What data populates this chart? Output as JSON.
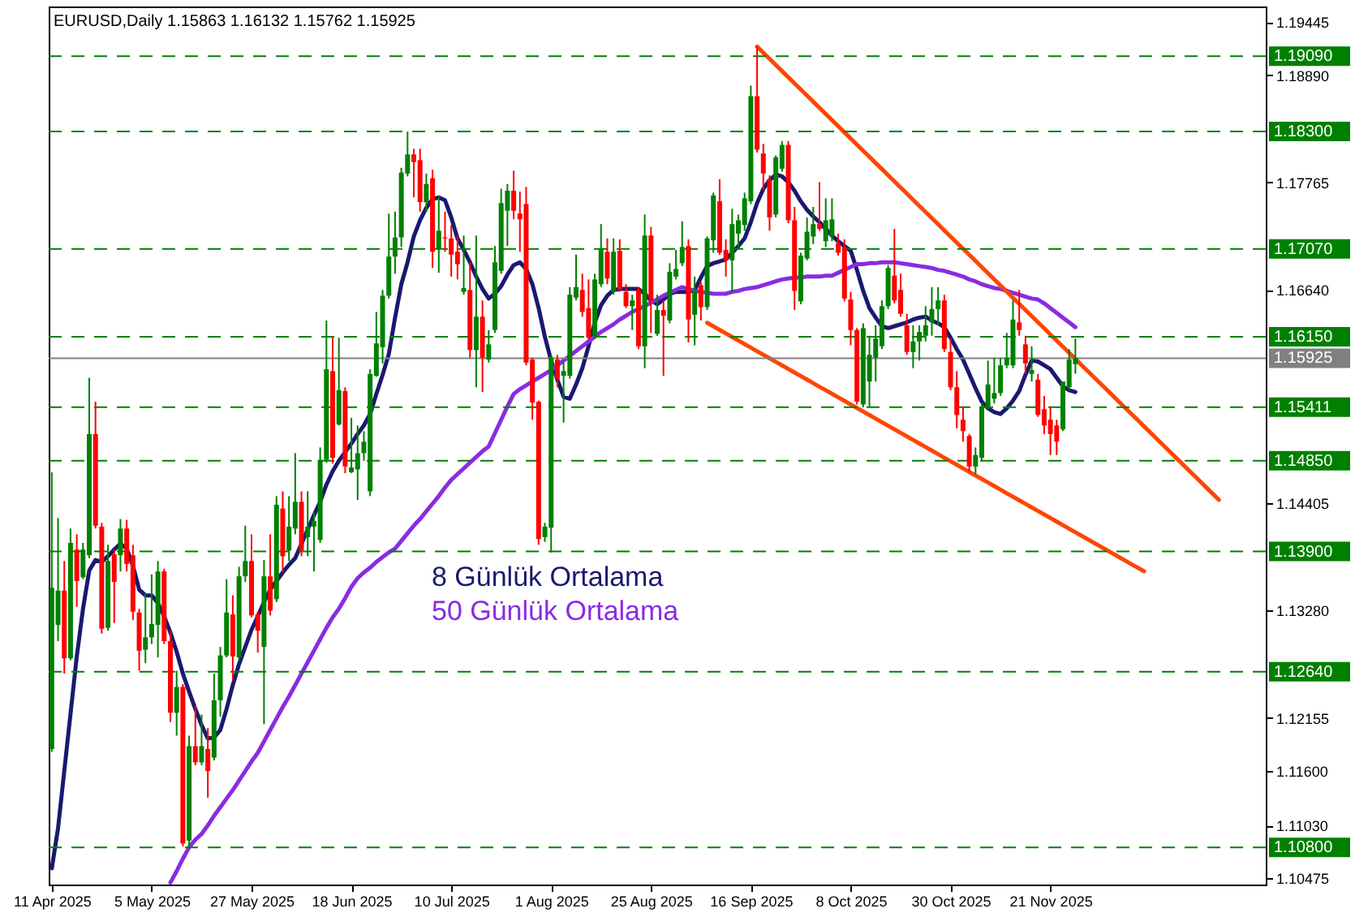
{
  "chart_data": {
    "type": "candlestick",
    "title": "EURUSD,Daily  1.15863 1.16132 1.15762 1.15925",
    "categories": [
      "11 Apr 2025",
      null,
      null,
      null,
      null,
      null,
      null,
      null,
      null,
      null,
      null,
      null,
      null,
      null,
      null,
      null,
      "5 May 2025",
      null,
      null,
      null,
      null,
      null,
      null,
      null,
      null,
      null,
      null,
      null,
      null,
      null,
      null,
      null,
      "27 May 2025",
      null,
      null,
      null,
      null,
      null,
      null,
      null,
      null,
      null,
      null,
      null,
      null,
      null,
      null,
      null,
      "18 Jun 2025",
      null,
      null,
      null,
      null,
      null,
      null,
      null,
      null,
      null,
      null,
      null,
      null,
      null,
      null,
      null,
      "10 Jul 2025",
      null,
      null,
      null,
      null,
      null,
      null,
      null,
      null,
      null,
      null,
      null,
      null,
      null,
      null,
      null,
      "1 Aug 2025",
      null,
      null,
      null,
      null,
      null,
      null,
      null,
      null,
      null,
      null,
      null,
      null,
      null,
      null,
      null,
      "25 Aug 2025",
      null,
      null,
      null,
      null,
      null,
      null,
      null,
      null,
      null,
      null,
      null,
      null,
      null,
      null,
      null,
      "16 Sep 2025",
      null,
      null,
      null,
      null,
      null,
      null,
      null,
      null,
      null,
      null,
      null,
      null,
      null,
      null,
      null,
      "8 Oct 2025",
      null,
      null,
      null,
      null,
      null,
      null,
      null,
      null,
      null,
      null,
      null,
      null,
      null,
      null,
      null,
      "30 Oct 2025",
      null,
      null,
      null,
      null,
      null,
      null,
      null,
      null,
      null,
      null,
      null,
      null,
      null,
      null,
      null,
      "21 Nov 2025",
      null,
      null,
      null,
      null,
      null,
      null,
      null,
      null,
      null,
      null,
      null,
      null,
      null,
      null,
      null,
      null,
      null,
      null,
      null,
      null,
      null,
      null,
      null,
      null,
      null,
      null,
      null,
      null,
      null,
      null,
      null,
      null,
      null,
      null
    ],
    "ohlc": [
      [
        1.1183,
        1.1473,
        1.118,
        1.1352
      ],
      [
        1.1313,
        1.1425,
        1.1296,
        1.1349
      ],
      [
        1.1349,
        1.138,
        1.1262,
        1.1278
      ],
      [
        1.1278,
        1.1414,
        1.1276,
        1.1399
      ],
      [
        1.1392,
        1.1408,
        1.1332,
        1.1359
      ],
      [
        1.1363,
        1.1399,
        1.1361,
        1.1392
      ],
      [
        1.1386,
        1.1572,
        1.1383,
        1.1513
      ],
      [
        1.1513,
        1.1547,
        1.1414,
        1.1417
      ],
      [
        1.1416,
        1.142,
        1.1304,
        1.1309
      ],
      [
        1.131,
        1.1397,
        1.1307,
        1.138
      ],
      [
        1.1387,
        1.1392,
        1.1315,
        1.1358
      ],
      [
        1.1386,
        1.1424,
        1.1369,
        1.1414
      ],
      [
        1.1414,
        1.1423,
        1.1369,
        1.1377
      ],
      [
        1.1386,
        1.1397,
        1.1318,
        1.1327
      ],
      [
        1.1326,
        1.133,
        1.1265,
        1.1286
      ],
      [
        1.1287,
        1.1346,
        1.1273,
        1.13
      ],
      [
        1.13,
        1.1366,
        1.1293,
        1.1314
      ],
      [
        1.1313,
        1.138,
        1.1279,
        1.1369
      ],
      [
        1.1369,
        1.1372,
        1.1293,
        1.1296
      ],
      [
        1.1296,
        1.1307,
        1.1211,
        1.1221
      ],
      [
        1.1221,
        1.1265,
        1.1197,
        1.1248
      ],
      [
        1.1248,
        1.1251,
        1.1081,
        1.1084
      ],
      [
        1.1087,
        1.1197,
        1.1081,
        1.1186
      ],
      [
        1.1186,
        1.1228,
        1.1166,
        1.1169
      ],
      [
        1.1169,
        1.1219,
        1.1166,
        1.1186
      ],
      [
        1.1183,
        1.1205,
        1.1132,
        1.116
      ],
      [
        1.1174,
        1.1262,
        1.1171,
        1.1234
      ],
      [
        1.1234,
        1.129,
        1.1217,
        1.1281
      ],
      [
        1.1281,
        1.1361,
        1.1279,
        1.1326
      ],
      [
        1.1324,
        1.1344,
        1.1255,
        1.128
      ],
      [
        1.1279,
        1.1374,
        1.1276,
        1.1364
      ],
      [
        1.1364,
        1.1417,
        1.1358,
        1.138
      ],
      [
        1.138,
        1.1408,
        1.1321,
        1.1323
      ],
      [
        1.1324,
        1.1327,
        1.1284,
        1.1307
      ],
      [
        1.129,
        1.1381,
        1.1209,
        1.1364
      ],
      [
        1.1364,
        1.1408,
        1.1323,
        1.1328
      ],
      [
        1.134,
        1.1448,
        1.1337,
        1.1439
      ],
      [
        1.1435,
        1.1453,
        1.1368,
        1.1385
      ],
      [
        1.1391,
        1.1448,
        1.138,
        1.1416
      ],
      [
        1.1414,
        1.1493,
        1.1408,
        1.1442
      ],
      [
        1.1442,
        1.1453,
        1.1385,
        1.1391
      ],
      [
        1.1405,
        1.1453,
        1.1385,
        1.1416
      ],
      [
        1.1416,
        1.1431,
        1.1369,
        1.1422
      ],
      [
        1.1402,
        1.1499,
        1.1399,
        1.1486
      ],
      [
        1.1486,
        1.1632,
        1.1483,
        1.1581
      ],
      [
        1.1579,
        1.1614,
        1.1482,
        1.1488
      ],
      [
        1.1523,
        1.1614,
        1.1522,
        1.1559
      ],
      [
        1.1558,
        1.1562,
        1.1472,
        1.1479
      ],
      [
        1.1473,
        1.153,
        1.1472,
        1.1478
      ],
      [
        1.1476,
        1.1522,
        1.1444,
        1.1493
      ],
      [
        1.1493,
        1.1516,
        1.1485,
        1.1505
      ],
      [
        1.1453,
        1.1581,
        1.1448,
        1.1576
      ],
      [
        1.1574,
        1.1641,
        1.1573,
        1.1608
      ],
      [
        1.1604,
        1.1664,
        1.1587,
        1.1658
      ],
      [
        1.1658,
        1.1744,
        1.1655,
        1.1699
      ],
      [
        1.1699,
        1.1746,
        1.1681,
        1.1719
      ],
      [
        1.1719,
        1.1792,
        1.1709,
        1.1787
      ],
      [
        1.1786,
        1.183,
        1.1783,
        1.1806
      ],
      [
        1.1806,
        1.1812,
        1.1761,
        1.1798
      ],
      [
        1.18,
        1.1812,
        1.1746,
        1.1756
      ],
      [
        1.1756,
        1.1786,
        1.1746,
        1.1775
      ],
      [
        1.1781,
        1.179,
        1.1687,
        1.1704
      ],
      [
        1.1707,
        1.1763,
        1.1682,
        1.1726
      ],
      [
        1.1719,
        1.1746,
        1.1704,
        1.1718
      ],
      [
        1.1718,
        1.1732,
        1.1678,
        1.1701
      ],
      [
        1.1704,
        1.1721,
        1.1675,
        1.1691
      ],
      [
        1.1662,
        1.1721,
        1.1659,
        1.1666
      ],
      [
        1.1664,
        1.1693,
        1.1593,
        1.1601
      ],
      [
        1.1601,
        1.1721,
        1.1562,
        1.1636
      ],
      [
        1.1636,
        1.1653,
        1.1557,
        1.1593
      ],
      [
        1.1591,
        1.1622,
        1.1588,
        1.1607
      ],
      [
        1.1622,
        1.171,
        1.1619,
        1.1693
      ],
      [
        1.1684,
        1.177,
        1.1681,
        1.1755
      ],
      [
        1.1747,
        1.1775,
        1.171,
        1.1768
      ],
      [
        1.1768,
        1.1789,
        1.1738,
        1.1747
      ],
      [
        1.1744,
        1.1767,
        1.1704,
        1.1738
      ],
      [
        1.1754,
        1.1772,
        1.1585,
        1.1588
      ],
      [
        1.1591,
        1.1593,
        1.1528,
        1.1546
      ],
      [
        1.1547,
        1.1548,
        1.1397,
        1.1403
      ],
      [
        1.1405,
        1.142,
        1.14,
        1.1416
      ],
      [
        1.1415,
        1.1596,
        1.1389,
        1.1593
      ],
      [
        1.1591,
        1.1596,
        1.1562,
        1.1571
      ],
      [
        1.1574,
        1.1588,
        1.1525,
        1.1579
      ],
      [
        1.1574,
        1.1667,
        1.1571,
        1.1659
      ],
      [
        1.1656,
        1.1701,
        1.1653,
        1.1667
      ],
      [
        1.1664,
        1.1681,
        1.1636,
        1.1641
      ],
      [
        1.1645,
        1.1675,
        1.1612,
        1.1614
      ],
      [
        1.1616,
        1.1681,
        1.1613,
        1.1675
      ],
      [
        1.167,
        1.1733,
        1.1667,
        1.1707
      ],
      [
        1.1704,
        1.1718,
        1.167,
        1.1676
      ],
      [
        1.1662,
        1.1718,
        1.1659,
        1.1704
      ],
      [
        1.1705,
        1.1717,
        1.1662,
        1.1664
      ],
      [
        1.1662,
        1.167,
        1.1645,
        1.1647
      ],
      [
        1.1647,
        1.1659,
        1.1622,
        1.1653
      ],
      [
        1.1664,
        1.1667,
        1.1602,
        1.1605
      ],
      [
        1.1605,
        1.1743,
        1.1582,
        1.1721
      ],
      [
        1.1721,
        1.173,
        1.1619,
        1.1653
      ],
      [
        1.1618,
        1.1659,
        1.1616,
        1.1643
      ],
      [
        1.1643,
        1.1653,
        1.1574,
        1.1637
      ],
      [
        1.1632,
        1.1692,
        1.1629,
        1.1683
      ],
      [
        1.1678,
        1.1706,
        1.1675,
        1.1686
      ],
      [
        1.1692,
        1.1736,
        1.1689,
        1.1709
      ],
      [
        1.171,
        1.1717,
        1.1609,
        1.1633
      ],
      [
        1.1638,
        1.1678,
        1.1606,
        1.1663
      ],
      [
        1.1669,
        1.1672,
        1.1632,
        1.1646
      ],
      [
        1.1646,
        1.172,
        1.1643,
        1.1718
      ],
      [
        1.1716,
        1.1766,
        1.1703,
        1.1763
      ],
      [
        1.1757,
        1.178,
        1.1701,
        1.1703
      ],
      [
        1.1706,
        1.1717,
        1.1678,
        1.1695
      ],
      [
        1.1695,
        1.1749,
        1.1661,
        1.1733
      ],
      [
        1.1723,
        1.1743,
        1.1709,
        1.1737
      ],
      [
        1.1732,
        1.1766,
        1.1726,
        1.176
      ],
      [
        1.1757,
        1.1878,
        1.1754,
        1.1867
      ],
      [
        1.1867,
        1.1919,
        1.1808,
        1.1811
      ],
      [
        1.1807,
        1.1817,
        1.1769,
        1.1786
      ],
      [
        1.178,
        1.1784,
        1.1726,
        1.174
      ],
      [
        1.1743,
        1.1805,
        1.174,
        1.1803
      ],
      [
        1.1791,
        1.182,
        1.1788,
        1.1816
      ],
      [
        1.1816,
        1.182,
        1.1734,
        1.1737
      ],
      [
        1.1737,
        1.1751,
        1.1643,
        1.1663
      ],
      [
        1.1652,
        1.1703,
        1.1649,
        1.17
      ],
      [
        1.1697,
        1.174,
        1.1695,
        1.1725
      ],
      [
        1.172,
        1.1751,
        1.1712,
        1.1733
      ],
      [
        1.1733,
        1.1777,
        1.1726,
        1.1728
      ],
      [
        1.1715,
        1.176,
        1.1709,
        1.1737
      ],
      [
        1.172,
        1.176,
        1.1715,
        1.1738
      ],
      [
        1.1713,
        1.1723,
        1.17,
        1.1703
      ],
      [
        1.1709,
        1.1717,
        1.1652,
        1.1655
      ],
      [
        1.1654,
        1.1662,
        1.1606,
        1.1622
      ],
      [
        1.1622,
        1.1624,
        1.1544,
        1.1547
      ],
      [
        1.1544,
        1.1629,
        1.1541,
        1.1624
      ],
      [
        1.1568,
        1.1616,
        1.1542,
        1.1596
      ],
      [
        1.1593,
        1.1627,
        1.1568,
        1.1613
      ],
      [
        1.1605,
        1.1653,
        1.1602,
        1.1647
      ],
      [
        1.1647,
        1.169,
        1.1644,
        1.1687
      ],
      [
        1.1679,
        1.1728,
        1.165,
        1.1653
      ],
      [
        1.1664,
        1.1681,
        1.1636,
        1.1639
      ],
      [
        1.1627,
        1.1639,
        1.1596,
        1.1599
      ],
      [
        1.1599,
        1.1627,
        1.1582,
        1.161
      ],
      [
        1.161,
        1.1627,
        1.159,
        1.162
      ],
      [
        1.1616,
        1.1647,
        1.161,
        1.1627
      ],
      [
        1.163,
        1.1667,
        1.1616,
        1.1644
      ],
      [
        1.1644,
        1.1667,
        1.1627,
        1.1653
      ],
      [
        1.1653,
        1.1659,
        1.1599,
        1.1602
      ],
      [
        1.1599,
        1.1613,
        1.1559,
        1.1562
      ],
      [
        1.1562,
        1.1579,
        1.1519,
        1.1533
      ],
      [
        1.1528,
        1.1542,
        1.1505,
        1.1516
      ],
      [
        1.1511,
        1.1513,
        1.1474,
        1.1479
      ],
      [
        1.1479,
        1.1499,
        1.1471,
        1.1491
      ],
      [
        1.1488,
        1.1545,
        1.1485,
        1.1542
      ],
      [
        1.1542,
        1.159,
        1.1539,
        1.1565
      ],
      [
        1.155,
        1.1593,
        1.1545,
        1.1556
      ],
      [
        1.1556,
        1.1593,
        1.1553,
        1.1585
      ],
      [
        1.1585,
        1.1619,
        1.1582,
        1.1593
      ],
      [
        1.1585,
        1.1653,
        1.1582,
        1.1633
      ],
      [
        1.163,
        1.1664,
        1.1616,
        1.1622
      ],
      [
        1.1607,
        1.1616,
        1.1576,
        1.1587
      ],
      [
        1.1576,
        1.1605,
        1.1568,
        1.158
      ],
      [
        1.157,
        1.1576,
        1.1531,
        1.1533
      ],
      [
        1.1539,
        1.1553,
        1.1513,
        1.1522
      ],
      [
        1.1528,
        1.1542,
        1.1491,
        1.1513
      ],
      [
        1.1522,
        1.1528,
        1.1491,
        1.1505
      ],
      [
        1.1518,
        1.1568,
        1.1516,
        1.1568
      ],
      [
        1.1562,
        1.1602,
        1.1559,
        1.1591
      ],
      [
        1.15863,
        1.16132,
        1.15762,
        1.15925
      ],
      null,
      null,
      null,
      null,
      null,
      null,
      null,
      null,
      null,
      null,
      null,
      null,
      null,
      null,
      null,
      null,
      null,
      null,
      null,
      null,
      null,
      null,
      null,
      null,
      null,
      null,
      null,
      null,
      null,
      null
    ],
    "colors": [
      "#008000",
      "#008000",
      "#ff0000",
      "#008000",
      "#ff0000",
      "#008000",
      "#008000",
      "#ff0000",
      "#ff0000",
      "#008000",
      "#ff0000",
      "#008000",
      "#ff0000",
      "#ff0000",
      "#ff0000",
      "#008000",
      "#008000",
      "#008000",
      "#ff0000",
      "#ff0000",
      "#008000",
      "#ff0000",
      "#008000",
      "#ff0000",
      "#008000",
      "#ff0000",
      "#008000",
      "#008000",
      "#008000",
      "#ff0000",
      "#008000",
      "#008000",
      "#ff0000",
      "#ff0000",
      "#008000",
      "#ff0000",
      "#008000",
      "#ff0000",
      "#008000",
      "#008000",
      "#ff0000",
      "#008000",
      "#008000",
      "#008000",
      "#008000",
      "#ff0000",
      "#008000",
      "#ff0000",
      "#008000",
      "#008000",
      "#008000",
      "#008000",
      "#008000",
      "#008000",
      "#008000",
      "#008000",
      "#008000",
      "#008000",
      "#ff0000",
      "#ff0000",
      "#008000",
      "#ff0000",
      "#008000",
      "#ff0000",
      "#ff0000",
      "#ff0000",
      "#008000",
      "#ff0000",
      "#008000",
      "#ff0000",
      "#008000",
      "#008000",
      "#008000",
      "#008000",
      "#ff0000",
      "#ff0000",
      "#ff0000",
      "#ff0000",
      "#ff0000",
      "#008000",
      "#008000",
      "#ff0000",
      "#008000",
      "#008000",
      "#008000",
      "#ff0000",
      "#ff0000",
      "#008000",
      "#008000",
      "#ff0000",
      "#008000",
      "#ff0000",
      "#ff0000",
      "#008000",
      "#ff0000",
      "#008000",
      "#ff0000",
      "#008000",
      "#ff0000",
      "#008000",
      "#008000",
      "#008000",
      "#ff0000",
      "#008000",
      "#ff0000",
      "#008000",
      "#008000",
      "#ff0000",
      "#ff0000",
      "#008000",
      "#008000",
      "#008000",
      "#008000",
      "#ff0000",
      "#ff0000",
      "#ff0000",
      "#008000",
      "#008000",
      "#ff0000",
      "#ff0000",
      "#008000",
      "#008000",
      "#008000",
      "#ff0000",
      "#008000",
      "#008000",
      "#ff0000",
      "#ff0000",
      "#ff0000",
      "#ff0000",
      "#008000",
      "#008000",
      "#008000",
      "#008000",
      "#008000",
      "#ff0000",
      "#ff0000",
      "#ff0000",
      "#008000",
      "#008000",
      "#008000",
      "#008000",
      "#008000",
      "#ff0000",
      "#ff0000",
      "#ff0000",
      "#ff0000",
      "#ff0000",
      "#008000",
      "#008000",
      "#008000",
      "#008000",
      "#008000",
      "#008000",
      "#008000",
      "#ff0000",
      "#ff0000",
      "#008000",
      "#ff0000",
      "#ff0000",
      "#ff0000",
      "#ff0000",
      "#008000",
      "#008000",
      "#008000",
      null,
      null,
      null,
      null,
      null,
      null,
      null,
      null,
      null,
      null,
      null,
      null,
      null,
      null,
      null,
      null,
      null,
      null,
      null,
      null,
      null,
      null,
      null,
      null,
      null,
      null,
      null,
      null,
      null,
      null
    ],
    "series": [
      {
        "type": "line",
        "name": "8 Günlük Ortalama",
        "color": "#191970",
        "values": [
          1.1058,
          1.11,
          1.116,
          1.122,
          1.128,
          1.133,
          1.137,
          1.1381,
          1.1379,
          1.1385,
          1.1392,
          1.1398,
          1.1393,
          1.1375,
          1.135,
          1.1344,
          1.1344,
          1.1336,
          1.1322,
          1.1305,
          1.1285,
          1.1262,
          1.1243,
          1.1225,
          1.1208,
          1.1194,
          1.1195,
          1.1203,
          1.1225,
          1.125,
          1.1272,
          1.129,
          1.1308,
          1.1322,
          1.1337,
          1.135,
          1.1359,
          1.1368,
          1.1376,
          1.1383,
          1.1398,
          1.1413,
          1.1428,
          1.1442,
          1.146,
          1.1474,
          1.1485,
          1.1494,
          1.1503,
          1.1513,
          1.1522,
          1.1534,
          1.1555,
          1.1575,
          1.1597,
          1.1635,
          1.167,
          1.1693,
          1.172,
          1.1737,
          1.175,
          1.1759,
          1.1761,
          1.1758,
          1.174,
          1.1718,
          1.1706,
          1.1693,
          1.1678,
          1.1665,
          1.1655,
          1.166,
          1.1668,
          1.168,
          1.169,
          1.1693,
          1.1686,
          1.167,
          1.1645,
          1.1615,
          1.159,
          1.157,
          1.1552,
          1.155,
          1.1565,
          1.1582,
          1.1605,
          1.163,
          1.1648,
          1.1658,
          1.1664,
          1.1665,
          1.1665,
          1.1665,
          1.1665,
          1.166,
          1.1653,
          1.1649,
          1.1654,
          1.166,
          1.1662,
          1.1662,
          1.1662,
          1.1664,
          1.1677,
          1.1689,
          1.1692,
          1.1694,
          1.1696,
          1.1703,
          1.171,
          1.1718,
          1.1735,
          1.1755,
          1.177,
          1.1779,
          1.1785,
          1.1783,
          1.1777,
          1.1768,
          1.1757,
          1.1748,
          1.1741,
          1.1735,
          1.1728,
          1.1721,
          1.1715,
          1.171,
          1.1705,
          1.1685,
          1.1663,
          1.1645,
          1.1635,
          1.1626,
          1.1624,
          1.1626,
          1.1628,
          1.163,
          1.1633,
          1.1635,
          1.1636,
          1.1632,
          1.1629,
          1.1625,
          1.1614,
          1.1602,
          1.1591,
          1.1576,
          1.1561,
          1.1547,
          1.154,
          1.1536,
          1.1534,
          1.154,
          1.1548,
          1.1558,
          1.1575,
          1.159,
          1.1589,
          1.1585,
          1.1581,
          1.1572,
          1.1563,
          1.1559,
          1.1557,
          null,
          null,
          null,
          null,
          null,
          null,
          null,
          null,
          null,
          null,
          null,
          null,
          null,
          null,
          null,
          null,
          null,
          null,
          null,
          null,
          null,
          null,
          null,
          null,
          null,
          null,
          null,
          null,
          null,
          null
        ]
      },
      {
        "type": "line",
        "name": "50 Günlük Ortalama",
        "color": "#8a2be2",
        "values": [
          null,
          null,
          null,
          null,
          null,
          null,
          null,
          null,
          null,
          null,
          null,
          null,
          null,
          null,
          null,
          null,
          null,
          null,
          null,
          1.1043,
          1.1055,
          1.1068,
          1.108,
          1.1088,
          1.1094,
          1.1103,
          1.1113,
          1.1122,
          1.1131,
          1.114,
          1.115,
          1.116,
          1.117,
          1.1179,
          1.1191,
          1.1203,
          1.1215,
          1.1227,
          1.1238,
          1.125,
          1.1262,
          1.1274,
          1.1286,
          1.1298,
          1.131,
          1.1321,
          1.133,
          1.1341,
          1.1353,
          1.1362,
          1.1368,
          1.1373,
          1.1379,
          1.1384,
          1.1389,
          1.1393,
          1.1401,
          1.1409,
          1.1417,
          1.1424,
          1.1432,
          1.144,
          1.1448,
          1.1457,
          1.1465,
          1.1471,
          1.1477,
          1.1483,
          1.1489,
          1.1495,
          1.15,
          1.1514,
          1.1528,
          1.1542,
          1.1555,
          1.156,
          1.1564,
          1.1568,
          1.1572,
          1.1576,
          1.158,
          1.1585,
          1.159,
          1.1595,
          1.16,
          1.1605,
          1.161,
          1.1615,
          1.162,
          1.1624,
          1.1628,
          1.1633,
          1.1637,
          1.1641,
          1.1644,
          1.1647,
          1.1651,
          1.1654,
          1.1658,
          1.1661,
          1.1664,
          1.1667,
          1.1665,
          1.1663,
          1.1662,
          1.1661,
          1.166,
          1.166,
          1.166,
          1.1662,
          1.1663,
          1.1665,
          1.1666,
          1.1667,
          1.1669,
          1.1671,
          1.1673,
          1.1675,
          1.1676,
          1.1677,
          1.1677,
          1.1678,
          1.1678,
          1.1678,
          1.1679,
          1.1679,
          1.1682,
          1.1685,
          1.1688,
          1.1691,
          1.1691,
          1.1692,
          1.1692,
          1.1693,
          1.1693,
          1.1693,
          1.1692,
          1.1691,
          1.169,
          1.1689,
          1.1688,
          1.1687,
          1.1685,
          1.1684,
          1.1682,
          1.168,
          1.1678,
          1.1675,
          1.1673,
          1.167,
          1.1668,
          1.1666,
          1.1665,
          1.1663,
          1.1661,
          1.1659,
          1.1657,
          1.1655,
          1.1654,
          1.165,
          1.1645,
          1.164,
          1.1635,
          1.163,
          1.1625,
          null,
          null,
          null,
          null,
          null,
          null,
          null,
          null,
          null,
          null,
          null,
          null,
          null,
          null,
          null,
          null,
          null,
          null,
          null,
          null,
          null,
          null,
          null,
          null,
          null,
          null,
          null,
          null,
          null,
          null
        ]
      },
      {
        "type": "line",
        "color": "#ff4500",
        "values": [
          null,
          null,
          null,
          null,
          null,
          null,
          null,
          null,
          null,
          null,
          null,
          null,
          null,
          null,
          null,
          null,
          null,
          null,
          null,
          null,
          null,
          null,
          null,
          null,
          null,
          null,
          null,
          null,
          null,
          null,
          null,
          null,
          null,
          null,
          null,
          null,
          null,
          null,
          null,
          null,
          null,
          null,
          null,
          null,
          null,
          null,
          null,
          null,
          null,
          null,
          null,
          null,
          null,
          null,
          null,
          null,
          null,
          null,
          null,
          null,
          null,
          null,
          null,
          null,
          null,
          null,
          null,
          null,
          null,
          null,
          null,
          null,
          null,
          null,
          null,
          null,
          null,
          null,
          null,
          null,
          null,
          null,
          null,
          null,
          null,
          null,
          null,
          null,
          null,
          null,
          null,
          null,
          null,
          null,
          null,
          null,
          null,
          null,
          null,
          null,
          null,
          null,
          null,
          null,
          null,
          null,
          null,
          null,
          null,
          null,
          null,
          null,
          null,
          1.1919,
          1.19126,
          1.19062,
          1.18997,
          1.18933,
          1.18869,
          1.18805,
          1.18741,
          1.18676,
          1.18612,
          1.18548,
          1.18484,
          1.1842,
          1.18356,
          1.18291,
          1.18227,
          1.18163,
          1.18099,
          1.18035,
          1.1797,
          1.17906,
          1.17842,
          1.17778,
          1.17714,
          1.1765,
          1.17585,
          1.17521,
          1.17457,
          1.17393,
          1.17329,
          1.17264,
          1.172,
          1.17136,
          1.17072,
          1.17008,
          1.16944,
          1.16879,
          1.16815,
          1.16751,
          1.16687,
          1.16623,
          1.16558,
          1.16494,
          1.1643,
          1.16366,
          1.16302,
          1.16238,
          1.16173,
          1.16109,
          1.16045,
          1.15981,
          1.15917,
          1.15852,
          1.15788,
          1.15724,
          1.1566,
          1.15596,
          1.15532,
          1.15467,
          1.15403,
          1.15339,
          1.15275,
          1.15211,
          1.15146,
          1.15082,
          1.15018,
          1.14954,
          1.1489,
          1.14826,
          1.14761,
          1.14697,
          1.14633,
          1.14569,
          1.14505,
          1.14441,
          null,
          null,
          null,
          null,
          null,
          null,
          null
        ]
      },
      {
        "type": "line",
        "color": "#ff4500",
        "values": [
          null,
          null,
          null,
          null,
          null,
          null,
          null,
          null,
          null,
          null,
          null,
          null,
          null,
          null,
          null,
          null,
          null,
          null,
          null,
          null,
          null,
          null,
          null,
          null,
          null,
          null,
          null,
          null,
          null,
          null,
          null,
          null,
          null,
          null,
          null,
          null,
          null,
          null,
          null,
          null,
          null,
          null,
          null,
          null,
          null,
          null,
          null,
          null,
          null,
          null,
          null,
          null,
          null,
          null,
          null,
          null,
          null,
          null,
          null,
          null,
          null,
          null,
          null,
          null,
          null,
          null,
          null,
          null,
          null,
          null,
          null,
          null,
          null,
          null,
          null,
          null,
          null,
          null,
          null,
          null,
          null,
          null,
          null,
          null,
          null,
          null,
          null,
          null,
          null,
          null,
          null,
          null,
          null,
          null,
          null,
          null,
          null,
          null,
          null,
          null,
          null,
          null,
          null,
          null,
          null,
          1.16296,
          1.16259,
          1.16222,
          1.16184,
          1.16147,
          1.1611,
          1.16073,
          1.16036,
          1.15998,
          1.15961,
          1.15924,
          1.15887,
          1.1585,
          1.15812,
          1.15775,
          1.15738,
          1.15701,
          1.15664,
          1.15626,
          1.15589,
          1.15552,
          1.15515,
          1.15478,
          1.1544,
          1.15403,
          1.15366,
          1.15329,
          1.15292,
          1.15254,
          1.15217,
          1.1518,
          1.15143,
          1.15106,
          1.15068,
          1.15031,
          1.14994,
          1.14957,
          1.1492,
          1.14882,
          1.14845,
          1.14808,
          1.14771,
          1.14734,
          1.14696,
          1.14659,
          1.14622,
          1.14585,
          1.14548,
          1.1451,
          1.14473,
          1.14436,
          1.14399,
          1.14362,
          1.14324,
          1.14287,
          1.1425,
          1.14213,
          1.14176,
          1.14138,
          1.14101,
          1.14064,
          1.14027,
          1.1399,
          1.13952,
          1.13915,
          1.13878,
          1.13841,
          1.13804,
          1.13766,
          1.13729,
          1.13692,
          null,
          null,
          null,
          null,
          null,
          null,
          null,
          null,
          null,
          null,
          null,
          null,
          null,
          null,
          null,
          null,
          null,
          null,
          null
        ]
      }
    ],
    "ylim": [
      1.1041,
      1.1961
    ],
    "yticks": [
      1.19445,
      {
        "value": 1.1889,
        "label": "1.18890"
      },
      1.17765,
      {
        "value": 1.1664,
        "label": "1.16640"
      },
      1.14405,
      {
        "value": 1.1328,
        "label": "1.13280"
      },
      1.12155,
      {
        "value": 1.116,
        "label": "1.11600"
      },
      {
        "value": 1.1103,
        "label": "1.11030"
      },
      1.10475
    ],
    "ref_lines": [
      {
        "axis": "y",
        "value": 1.1909,
        "label": "1.19090",
        "color": "#008000",
        "line_style": "dashed"
      },
      {
        "axis": "y",
        "value": 1.183,
        "label": "1.18300",
        "color": "#008000",
        "line_style": "dashed"
      },
      {
        "axis": "y",
        "value": 1.1707,
        "label": "1.17070",
        "color": "#008000",
        "line_style": "dashed"
      },
      {
        "axis": "y",
        "value": 1.1615,
        "label": "1.16150",
        "color": "#008000",
        "line_style": "dashed"
      },
      {
        "axis": "y",
        "value": 1.15411,
        "label": "1.15411",
        "color": "#008000",
        "line_style": "dashed"
      },
      {
        "axis": "y",
        "value": 1.1485,
        "label": "1.14850",
        "color": "#008000",
        "line_style": "dashed"
      },
      {
        "axis": "y",
        "value": 1.139,
        "label": "1.13900",
        "color": "#008000",
        "line_style": "dashed"
      },
      {
        "axis": "y",
        "value": 1.1264,
        "label": "1.12640",
        "color": "#008000",
        "line_style": "dashed"
      },
      {
        "axis": "y",
        "value": 1.108,
        "label": "1.10800",
        "color": "#008000",
        "line_style": "dashed"
      },
      {
        "axis": "y",
        "value": 1.15925,
        "label": "1.15925",
        "color": "#808080",
        "line_style": "solid"
      }
    ]
  }
}
